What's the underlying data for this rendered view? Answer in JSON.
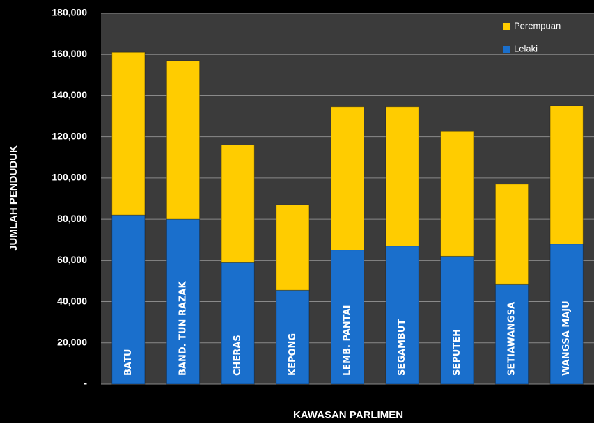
{
  "chart_data": {
    "type": "stacked_bar",
    "x_label": "KAWASAN PARLIMEN",
    "y_label": "JUMLAH PENDUDUK",
    "categories": [
      "BATU",
      "BAND. TUN RAZAK",
      "CHERAS",
      "KEPONG",
      "LEMB. PANTAI",
      "SEGAMBUT",
      "SEPUTEH",
      "SETIAWANGSA",
      "WANGSA MAJU"
    ],
    "series": [
      {
        "name": "Lelaki",
        "color": "#1a6fcc",
        "values": [
          82000,
          80000,
          59000,
          45500,
          65000,
          67000,
          62000,
          48500,
          68000
        ]
      },
      {
        "name": "Perempuan",
        "color": "#ffcc00",
        "values": [
          79000,
          77000,
          57000,
          41500,
          69500,
          67500,
          60500,
          48500,
          67000
        ]
      }
    ],
    "ylim": [
      0,
      180000
    ],
    "yticks": [
      {
        "value": 0,
        "label": "-"
      },
      {
        "value": 20000,
        "label": "20,000"
      },
      {
        "value": 40000,
        "label": "40,000"
      },
      {
        "value": 60000,
        "label": "60,000"
      },
      {
        "value": 80000,
        "label": "80,000"
      },
      {
        "value": 100000,
        "label": "100,000"
      },
      {
        "value": 120000,
        "label": "120,000"
      },
      {
        "value": 140000,
        "label": "140,000"
      },
      {
        "value": 160000,
        "label": "160,000"
      },
      {
        "value": 180000,
        "label": "180,000"
      }
    ],
    "grid": true,
    "legend": "top-right"
  }
}
